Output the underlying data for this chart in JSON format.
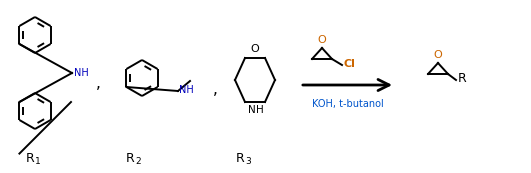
{
  "fig_width": 5.31,
  "fig_height": 1.73,
  "dpi": 100,
  "bg_color": "#ffffff",
  "line_color": "#000000",
  "orange_color": "#cc6600",
  "blue_color": "#0055cc",
  "nh_color": "#0000bb",
  "line_width": 1.4,
  "reagent_text": "KOH, t-butanol",
  "subscripts": [
    "1",
    "2",
    "3"
  ]
}
